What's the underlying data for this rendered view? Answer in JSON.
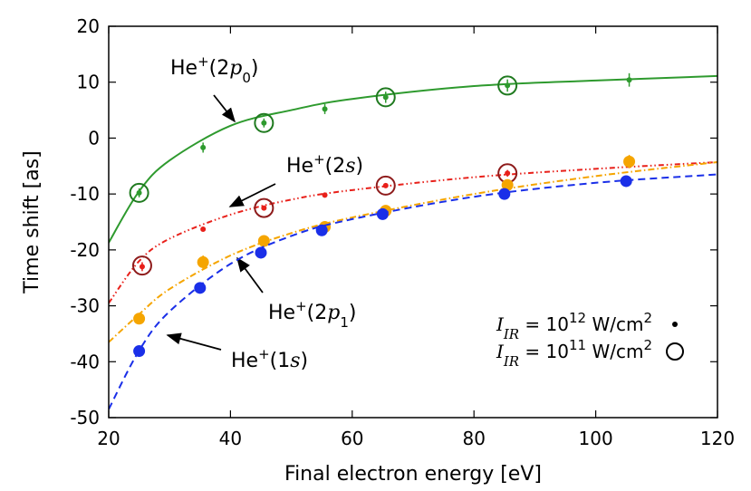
{
  "chart_data": {
    "type": "line",
    "x_label": "Final electron energy [eV]",
    "y_label": "Time shift [as]",
    "xlim": [
      20,
      120
    ],
    "ylim": [
      -50,
      20
    ],
    "xticks": [
      20,
      40,
      60,
      80,
      100,
      120
    ],
    "yticks": [
      -50,
      -40,
      -30,
      -20,
      -10,
      0,
      10,
      20
    ],
    "curve_x": [
      20,
      25,
      30,
      40,
      50,
      60,
      80,
      100,
      120
    ],
    "series": [
      {
        "name_parts": [
          {
            "t": "He"
          },
          {
            "t": "+",
            "sup": true
          },
          {
            "t": "(2"
          },
          {
            "t": "p",
            "italic": true
          },
          {
            "t": "0",
            "sub": true
          },
          {
            "t": ")"
          }
        ],
        "color": "#2e9a2e",
        "circle_color": "#1f7a1f",
        "dash": "none",
        "curve": [
          -18.7,
          -9.5,
          -4,
          2.2,
          5,
          7,
          9.3,
          10.3,
          11.1
        ],
        "dots": {
          "x": [
            25,
            35.5,
            45.5,
            55.5,
            65.5,
            85.5,
            105.5
          ],
          "values": [
            -9.8,
            -1.7,
            2.7,
            5.2,
            7.3,
            9.4,
            10.4
          ],
          "errors": [
            0.8,
            0.9,
            0.8,
            0.9,
            1,
            1.1,
            1.2
          ]
        },
        "circles": {
          "x": [
            25,
            45.5,
            65.5,
            85.5
          ],
          "values": [
            -9.8,
            2.7,
            7.3,
            9.4
          ]
        }
      },
      {
        "name_parts": [
          {
            "t": "He"
          },
          {
            "t": "+",
            "sup": true
          },
          {
            "t": "(2"
          },
          {
            "t": "s",
            "italic": true
          },
          {
            "t": ")"
          }
        ],
        "color": "#e8201a",
        "circle_color": "#8e1b1b",
        "dash": "6,3,1.5,3,1.5,3",
        "curve": [
          -29.5,
          -22,
          -18,
          -13.7,
          -11,
          -9.3,
          -7,
          -5.5,
          -4.3
        ],
        "dots": {
          "x": [
            25.5,
            35.5,
            45.5,
            55.5,
            65.5,
            85.5
          ],
          "values": [
            -23,
            -16.3,
            -12.5,
            -10.2,
            -8.5,
            -6.3
          ],
          "errors": [
            0.8,
            0.4,
            0.4,
            0.3,
            0.4,
            0.6
          ]
        },
        "circles": {
          "x": [
            25.5,
            45.5,
            65.5,
            85.5
          ],
          "values": [
            -22.8,
            -12.5,
            -8.5,
            -6.3
          ]
        }
      },
      {
        "name_parts": [
          {
            "t": "He"
          },
          {
            "t": "+",
            "sup": true
          },
          {
            "t": "(2"
          },
          {
            "t": "p",
            "italic": true
          },
          {
            "t": "1",
            "sub": true
          },
          {
            "t": ")"
          }
        ],
        "color": "#f5a500",
        "circle_color": "#f5a500",
        "dash": "7,3,1.5,3",
        "curve": [
          -36.5,
          -31.5,
          -27,
          -21,
          -17,
          -14.2,
          -10,
          -6.8,
          -4.3
        ],
        "dots": {
          "x": [
            25,
            35.5,
            45.5,
            55.5,
            65.5,
            85.5,
            105.5
          ],
          "values": [
            -32.3,
            -22.2,
            -18.4,
            -15.9,
            -13,
            -8.4,
            -4.2
          ],
          "errors": [
            0.5,
            1.2,
            0.9,
            0.7,
            0.7,
            0.8,
            1.2
          ]
        },
        "circles": {
          "x": [],
          "values": []
        }
      },
      {
        "name_parts": [
          {
            "t": "He"
          },
          {
            "t": "+",
            "sup": true
          },
          {
            "t": "(1"
          },
          {
            "t": "s",
            "italic": true
          },
          {
            "t": ")"
          }
        ],
        "color": "#1a2fe8",
        "circle_color": "#1a2fe8",
        "dash": "8,5",
        "curve": [
          -48.5,
          -38,
          -31,
          -22.5,
          -17.5,
          -14.5,
          -10.5,
          -8,
          -6.5
        ],
        "dots": {
          "x": [
            25,
            35,
            45,
            55,
            65,
            85,
            105
          ],
          "values": [
            -38.1,
            -26.8,
            -20.5,
            -16.5,
            -13.6,
            -10,
            -7.7
          ],
          "errors": [
            0.4,
            0.4,
            0.4,
            0.4,
            0.4,
            0.4,
            0.4
          ]
        },
        "circles": {
          "x": [],
          "values": []
        }
      }
    ],
    "legend": [
      {
        "marker": "dot",
        "parts": [
          {
            "t": "I",
            "italic": true
          },
          {
            "t": "IR",
            "sub": true,
            "italic": true
          },
          {
            "t": " = 10"
          },
          {
            "t": "12",
            "sup": true
          },
          {
            "t": " W/cm"
          },
          {
            "t": "2",
            "sup": true
          }
        ]
      },
      {
        "marker": "circle",
        "parts": [
          {
            "t": "I",
            "italic": true
          },
          {
            "t": "IR",
            "sub": true,
            "italic": true
          },
          {
            "t": " = 10"
          },
          {
            "t": "11",
            "sup": true
          },
          {
            "t": " W/cm"
          },
          {
            "t": "2",
            "sup": true
          }
        ]
      }
    ]
  }
}
